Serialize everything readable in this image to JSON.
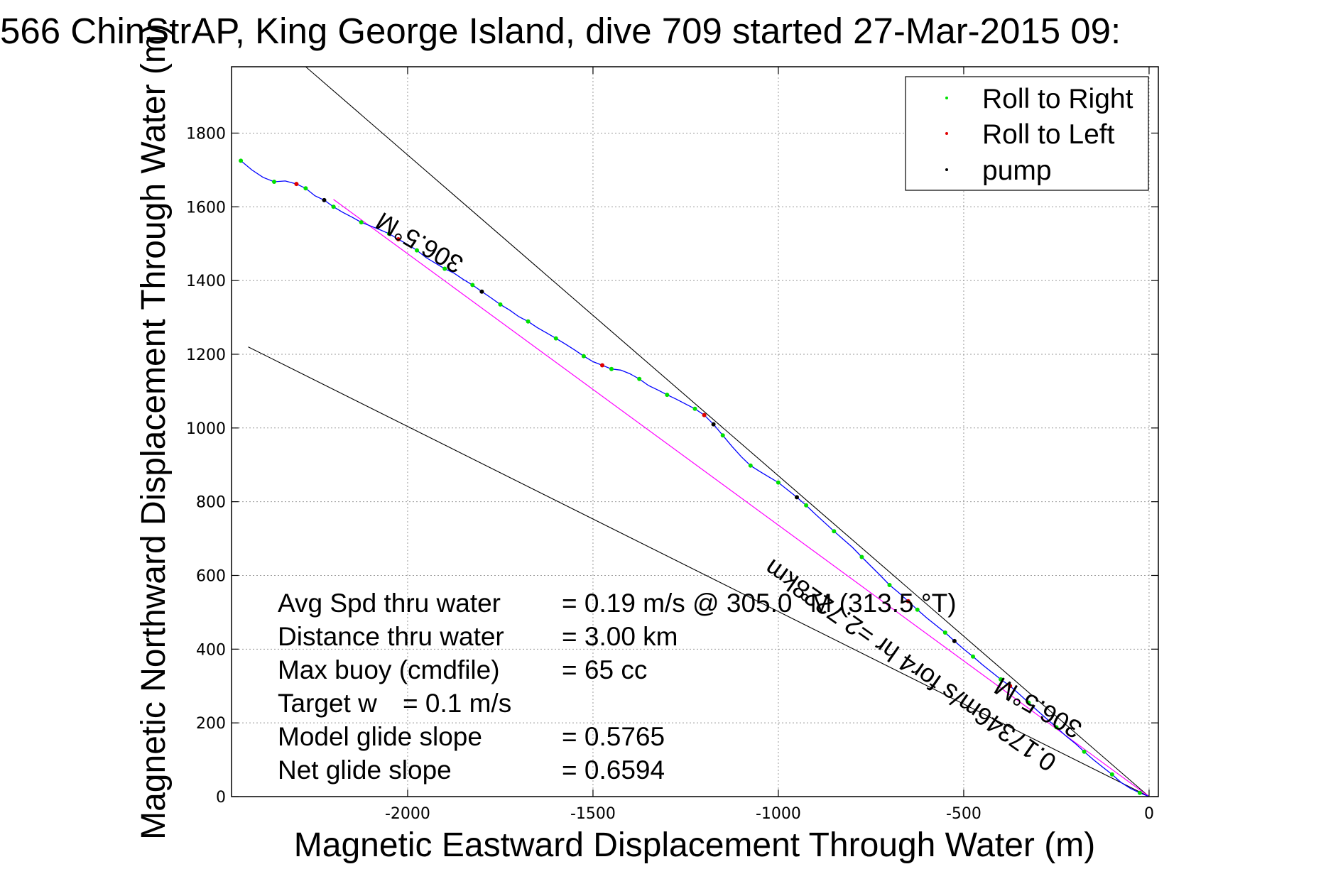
{
  "chart_data": {
    "type": "line",
    "title": "566 ChinStrAP, King George Island, dive 709 started 27-Mar-2015 09:",
    "xlabel": "Magnetic Eastward Displacement Through Water (m)",
    "ylabel": "Magnetic Northward Displacement Through Water (m)",
    "xlim": [
      -2475,
      25
    ],
    "ylim": [
      0,
      1980
    ],
    "xticks": [
      -2000,
      -1500,
      -1000,
      -500,
      0
    ],
    "yticks": [
      0,
      200,
      400,
      600,
      800,
      1000,
      1200,
      1400,
      1600,
      1800
    ],
    "grid": true,
    "legend_position": "top-right",
    "legend": [
      {
        "label": "Roll to Right",
        "color": "#00e000"
      },
      {
        "label": "Roll to Left",
        "color": "#e00000"
      },
      {
        "label": "pump",
        "color": "#000000"
      }
    ],
    "track": {
      "color": "#0000ff",
      "points": [
        [
          -2450,
          1725
        ],
        [
          -2420,
          1700
        ],
        [
          -2390,
          1680
        ],
        [
          -2360,
          1668
        ],
        [
          -2330,
          1670
        ],
        [
          -2300,
          1662
        ],
        [
          -2275,
          1650
        ],
        [
          -2250,
          1630
        ],
        [
          -2225,
          1618
        ],
        [
          -2200,
          1600
        ],
        [
          -2175,
          1585
        ],
        [
          -2150,
          1572
        ],
        [
          -2125,
          1558
        ],
        [
          -2100,
          1548
        ],
        [
          -2075,
          1538
        ],
        [
          -2050,
          1527
        ],
        [
          -2025,
          1512
        ],
        [
          -2000,
          1498
        ],
        [
          -1975,
          1482
        ],
        [
          -1950,
          1462
        ],
        [
          -1925,
          1447
        ],
        [
          -1900,
          1432
        ],
        [
          -1875,
          1420
        ],
        [
          -1850,
          1403
        ],
        [
          -1825,
          1388
        ],
        [
          -1800,
          1370
        ],
        [
          -1775,
          1353
        ],
        [
          -1750,
          1335
        ],
        [
          -1725,
          1320
        ],
        [
          -1700,
          1302
        ],
        [
          -1675,
          1289
        ],
        [
          -1650,
          1272
        ],
        [
          -1625,
          1258
        ],
        [
          -1600,
          1243
        ],
        [
          -1575,
          1228
        ],
        [
          -1550,
          1212
        ],
        [
          -1525,
          1195
        ],
        [
          -1500,
          1180
        ],
        [
          -1475,
          1170
        ],
        [
          -1450,
          1160
        ],
        [
          -1425,
          1157
        ],
        [
          -1400,
          1147
        ],
        [
          -1375,
          1133
        ],
        [
          -1350,
          1115
        ],
        [
          -1325,
          1103
        ],
        [
          -1300,
          1090
        ],
        [
          -1275,
          1078
        ],
        [
          -1250,
          1065
        ],
        [
          -1225,
          1052
        ],
        [
          -1200,
          1035
        ],
        [
          -1175,
          1010
        ],
        [
          -1150,
          980
        ],
        [
          -1125,
          950
        ],
        [
          -1100,
          922
        ],
        [
          -1075,
          898
        ],
        [
          -1050,
          882
        ],
        [
          -1025,
          867
        ],
        [
          -1000,
          852
        ],
        [
          -975,
          832
        ],
        [
          -950,
          812
        ],
        [
          -925,
          790
        ],
        [
          -900,
          766
        ],
        [
          -875,
          743
        ],
        [
          -850,
          720
        ],
        [
          -825,
          698
        ],
        [
          -800,
          676
        ],
        [
          -775,
          650
        ],
        [
          -750,
          625
        ],
        [
          -725,
          600
        ],
        [
          -700,
          574
        ],
        [
          -675,
          553
        ],
        [
          -650,
          530
        ],
        [
          -625,
          507
        ],
        [
          -600,
          485
        ],
        [
          -575,
          465
        ],
        [
          -550,
          445
        ],
        [
          -525,
          422
        ],
        [
          -500,
          400
        ],
        [
          -475,
          380
        ],
        [
          -450,
          358
        ],
        [
          -425,
          338
        ],
        [
          -400,
          318
        ],
        [
          -375,
          300
        ],
        [
          -350,
          278
        ],
        [
          -325,
          255
        ],
        [
          -300,
          232
        ],
        [
          -275,
          210
        ],
        [
          -250,
          188
        ],
        [
          -225,
          165
        ],
        [
          -200,
          145
        ],
        [
          -175,
          122
        ],
        [
          -150,
          100
        ],
        [
          -125,
          80
        ],
        [
          -100,
          60
        ],
        [
          -75,
          38
        ],
        [
          -50,
          22
        ],
        [
          -25,
          10
        ],
        [
          0,
          0
        ]
      ]
    },
    "reference_line": {
      "color": "#ff00ff",
      "from": [
        -2200,
        1620
      ],
      "to": [
        0,
        0
      ],
      "label": "0.17346m/s for4 hr =2.7228km"
    },
    "heading_lines": [
      {
        "from": [
          -2275,
          1980
        ],
        "to": [
          0,
          0
        ],
        "label": "306.5°M"
      },
      {
        "from": [
          -2430,
          1220
        ],
        "to": [
          0,
          0
        ],
        "label": "306.5°M"
      }
    ],
    "stats": [
      {
        "label": "Avg Spd thru water",
        "value": "=  0.19 m/s @ 305.0  °M (313.5 °T)"
      },
      {
        "label": "Distance thru water",
        "value": "=  3.00 km"
      },
      {
        "label": "Max buoy (cmdfile)",
        "value": "= 65 cc"
      },
      {
        "label": "Target w",
        "value": "= 0.1 m/s"
      },
      {
        "label": "Model glide slope",
        "value": "= 0.5765"
      },
      {
        "label": "Net glide slope",
        "value": "= 0.6594"
      }
    ]
  }
}
